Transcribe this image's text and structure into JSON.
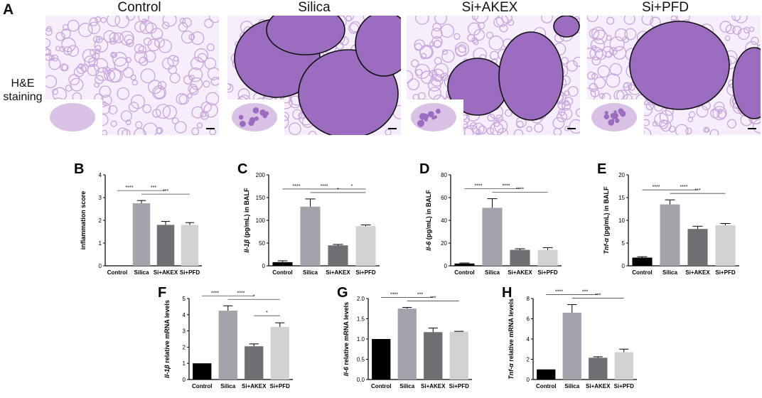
{
  "figure": {
    "panel_a_letter": "A",
    "stain_label_line1": "H&E",
    "stain_label_line2": "staining",
    "columns": [
      {
        "title": "Control",
        "lesion": false
      },
      {
        "title": "Silica",
        "lesion": true
      },
      {
        "title": "Si+AKEX",
        "lesion": true
      },
      {
        "title": "Si+PFD",
        "lesion": true
      }
    ],
    "colors": {
      "tissue": "#c9a6dd",
      "lesion": "#9b6cc0",
      "control": "#000000",
      "silica": "#a3a3ac",
      "akex": "#6e6e73",
      "pfd": "#d2d2d2"
    }
  },
  "chart_data": [
    {
      "panel": "B",
      "type": "bar",
      "categories": [
        "Control",
        "Silica",
        "Si+AKEX",
        "Si+PFD"
      ],
      "values": [
        0,
        2.75,
        1.8,
        1.8
      ],
      "errors": [
        0,
        0.12,
        0.15,
        0.1
      ],
      "ylabel": "inflammation score",
      "ylabel_italic": "",
      "ylim": [
        0,
        4
      ],
      "yticks": [
        "0",
        "1",
        "2",
        "3",
        "4"
      ],
      "significance": [
        {
          "from": 0,
          "to": 1,
          "label": "****",
          "level": 0
        },
        {
          "from": 1,
          "to": 2,
          "label": "***",
          "level": 0
        },
        {
          "from": 1,
          "to": 3,
          "label": "***",
          "level": 1
        }
      ]
    },
    {
      "panel": "C",
      "type": "bar",
      "categories": [
        "Control",
        "Silica",
        "Si+AKEX",
        "Si+PFD"
      ],
      "values": [
        8,
        130,
        45,
        87
      ],
      "errors": [
        3,
        17,
        2,
        3
      ],
      "ylabel": " (pg/mL) in BALF",
      "ylabel_italic": "Il-1β",
      "ylim": [
        0,
        200
      ],
      "yticks": [
        "0",
        "50",
        "100",
        "150",
        "200"
      ],
      "significance": [
        {
          "from": 0,
          "to": 1,
          "label": "****",
          "level": 0
        },
        {
          "from": 1,
          "to": 2,
          "label": "****",
          "level": 0
        },
        {
          "from": 2,
          "to": 3,
          "label": "*",
          "level": 0
        },
        {
          "from": 1,
          "to": 3,
          "label": "*",
          "level": 1
        }
      ]
    },
    {
      "panel": "D",
      "type": "bar",
      "categories": [
        "Control",
        "Silica",
        "Si+AKEX",
        "Si+PFD"
      ],
      "values": [
        2,
        51,
        14,
        14
      ],
      "errors": [
        0.5,
        8,
        1,
        2
      ],
      "ylabel": " (pg/mL) in BALF",
      "ylabel_italic": "Il-6",
      "ylim": [
        0,
        80
      ],
      "yticks": [
        "0",
        "20",
        "40",
        "60",
        "80"
      ],
      "significance": [
        {
          "from": 0,
          "to": 1,
          "label": "****",
          "level": 0
        },
        {
          "from": 1,
          "to": 2,
          "label": "****",
          "level": 0
        },
        {
          "from": 1,
          "to": 3,
          "label": "****",
          "level": 1
        }
      ]
    },
    {
      "panel": "E",
      "type": "bar",
      "categories": [
        "Control",
        "Silica",
        "Si+AKEX",
        "Si+PFD"
      ],
      "values": [
        1.8,
        13.5,
        8.1,
        8.9
      ],
      "errors": [
        0.2,
        1,
        0.6,
        0.4
      ],
      "ylabel": " (pg/mL) in BALF",
      "ylabel_italic": "Tnf-α",
      "ylim": [
        0,
        20
      ],
      "yticks": [
        "0",
        "5",
        "10",
        "15",
        "20"
      ],
      "significance": [
        {
          "from": 0,
          "to": 1,
          "label": "****",
          "level": 0
        },
        {
          "from": 1,
          "to": 2,
          "label": "****",
          "level": 0
        },
        {
          "from": 1,
          "to": 3,
          "label": "***",
          "level": 1
        }
      ]
    },
    {
      "panel": "F",
      "type": "bar",
      "categories": [
        "Control",
        "Silica",
        "Si+AKEX",
        "Si+PFD"
      ],
      "values": [
        1,
        4.25,
        2.05,
        3.25
      ],
      "errors": [
        0,
        0.3,
        0.15,
        0.25
      ],
      "ylabel": " relative mRNA levels",
      "ylabel_italic": "Il-1β",
      "ylim": [
        0,
        5
      ],
      "yticks": [
        "0",
        "1",
        "2",
        "3",
        "4",
        "5"
      ],
      "significance": [
        {
          "from": 0,
          "to": 1,
          "label": "****",
          "level": 0
        },
        {
          "from": 1,
          "to": 2,
          "label": "****",
          "level": 0
        },
        {
          "from": 1,
          "to": 3,
          "label": "*",
          "level": 1
        },
        {
          "from": 2,
          "to": 3,
          "label": "*",
          "level": 2
        }
      ]
    },
    {
      "panel": "G",
      "type": "bar",
      "categories": [
        "Control",
        "Silica",
        "Si+AKEX",
        "Si+PFD"
      ],
      "values": [
        1,
        1.75,
        1.17,
        1.18
      ],
      "errors": [
        0,
        0.03,
        0.1,
        0.01
      ],
      "ylabel": " relative mRNA levels",
      "ylabel_italic": "Il-6",
      "ylim": [
        0,
        2
      ],
      "yticks": [
        "0.0",
        "0.5",
        "1.0",
        "1.5",
        "2.0"
      ],
      "significance": [
        {
          "from": 0,
          "to": 1,
          "label": "****",
          "level": 0
        },
        {
          "from": 1,
          "to": 2,
          "label": "***",
          "level": 0
        },
        {
          "from": 1,
          "to": 3,
          "label": "***",
          "level": 1
        }
      ]
    },
    {
      "panel": "H",
      "type": "bar",
      "categories": [
        "Control",
        "Silica",
        "Si+AKEX",
        "Si+PFD"
      ],
      "values": [
        1,
        6.6,
        2.15,
        2.7
      ],
      "errors": [
        0,
        0.8,
        0.1,
        0.3
      ],
      "ylabel": " relative mRNA levels",
      "ylabel_italic": "Tnf-α",
      "ylim": [
        0,
        8
      ],
      "yticks": [
        "0",
        "2",
        "4",
        "6",
        "8"
      ],
      "significance": [
        {
          "from": 0,
          "to": 1,
          "label": "****",
          "level": 0
        },
        {
          "from": 1,
          "to": 2,
          "label": "***",
          "level": 0
        },
        {
          "from": 1,
          "to": 3,
          "label": "***",
          "level": 1
        }
      ]
    }
  ]
}
